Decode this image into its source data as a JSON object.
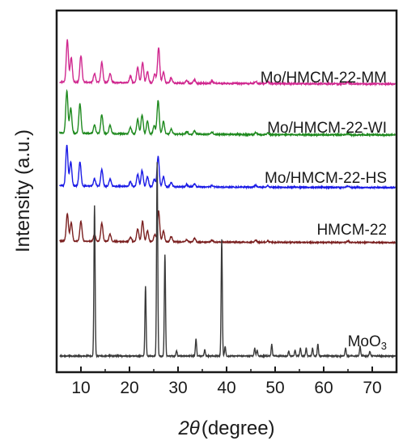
{
  "chart_data": {
    "type": "line",
    "xlabel_symbol": "2θ",
    "xlabel_unit": "(degree)",
    "ylabel": "Intensity (a.u.)",
    "xlim": [
      5,
      75
    ],
    "xticks": [
      10,
      20,
      30,
      40,
      50,
      60,
      70
    ],
    "grid": false,
    "legend": "inline labels at right of each trace",
    "series": [
      {
        "name": "Mo/HMCM-22-MM",
        "color": "#d0288f",
        "offset": 4,
        "baseline": 0.05,
        "peaks": [
          [
            7.2,
            0.95
          ],
          [
            8.0,
            0.55
          ],
          [
            10.0,
            0.6
          ],
          [
            12.8,
            0.2
          ],
          [
            14.3,
            0.45
          ],
          [
            16.0,
            0.2
          ],
          [
            20.2,
            0.15
          ],
          [
            21.7,
            0.35
          ],
          [
            22.7,
            0.45
          ],
          [
            23.7,
            0.25
          ],
          [
            25.2,
            0.2
          ],
          [
            26.0,
            0.8
          ],
          [
            27.0,
            0.25
          ],
          [
            28.6,
            0.12
          ],
          [
            31.8,
            0.06
          ],
          [
            33.4,
            0.08
          ],
          [
            37.0,
            0.05
          ],
          [
            46.0,
            0.05
          ],
          [
            48.5,
            0.04
          ],
          [
            65.0,
            0.04
          ]
        ]
      },
      {
        "name": "Mo/HMCM-22-WI",
        "color": "#1f8a1f",
        "offset": 3,
        "baseline": 0.05,
        "peaks": [
          [
            7.1,
            1.0
          ],
          [
            7.9,
            0.6
          ],
          [
            9.8,
            0.7
          ],
          [
            12.8,
            0.2
          ],
          [
            14.3,
            0.45
          ],
          [
            16.0,
            0.2
          ],
          [
            20.2,
            0.15
          ],
          [
            21.7,
            0.35
          ],
          [
            22.6,
            0.45
          ],
          [
            23.7,
            0.3
          ],
          [
            25.1,
            0.2
          ],
          [
            25.9,
            0.8
          ],
          [
            27.0,
            0.3
          ],
          [
            28.6,
            0.12
          ],
          [
            31.8,
            0.06
          ],
          [
            33.4,
            0.08
          ],
          [
            37.0,
            0.05
          ],
          [
            46.0,
            0.05
          ],
          [
            48.5,
            0.04
          ],
          [
            65.0,
            0.04
          ]
        ]
      },
      {
        "name": "Mo/HMCM-22-HS",
        "color": "#1a1ae6",
        "offset": 2,
        "baseline": 0.05,
        "peaks": [
          [
            7.1,
            1.0
          ],
          [
            7.9,
            0.6
          ],
          [
            9.8,
            0.6
          ],
          [
            12.8,
            0.18
          ],
          [
            14.3,
            0.42
          ],
          [
            16.0,
            0.18
          ],
          [
            20.2,
            0.12
          ],
          [
            21.7,
            0.3
          ],
          [
            22.6,
            0.4
          ],
          [
            23.7,
            0.25
          ],
          [
            25.1,
            0.18
          ],
          [
            25.9,
            0.75
          ],
          [
            27.0,
            0.25
          ],
          [
            28.6,
            0.1
          ],
          [
            31.8,
            0.05
          ],
          [
            33.4,
            0.07
          ],
          [
            37.0,
            0.04
          ],
          [
            46.0,
            0.05
          ],
          [
            48.5,
            0.04
          ],
          [
            65.0,
            0.04
          ]
        ]
      },
      {
        "name": "HMCM-22",
        "color": "#7a1f1f",
        "offset": 1,
        "baseline": 0.05,
        "peaks": [
          [
            7.2,
            0.75
          ],
          [
            8.0,
            0.5
          ],
          [
            10.0,
            0.55
          ],
          [
            12.8,
            0.2
          ],
          [
            14.3,
            0.5
          ],
          [
            16.0,
            0.2
          ],
          [
            20.2,
            0.12
          ],
          [
            21.7,
            0.35
          ],
          [
            22.7,
            0.55
          ],
          [
            23.7,
            0.3
          ],
          [
            25.2,
            0.2
          ],
          [
            26.0,
            0.85
          ],
          [
            27.0,
            0.3
          ],
          [
            28.6,
            0.15
          ],
          [
            31.8,
            0.06
          ],
          [
            33.4,
            0.1
          ],
          [
            37.0,
            0.05
          ],
          [
            46.0,
            0.05
          ],
          [
            48.5,
            0.04
          ],
          [
            65.0,
            0.04
          ]
        ]
      },
      {
        "name": "MoO",
        "name_subscript": "3",
        "color": "#3a3a3a",
        "offset": 0,
        "baseline": 0.02,
        "peaks": [
          [
            12.8,
            1.55
          ],
          [
            23.3,
            0.72
          ],
          [
            25.7,
            2.0
          ],
          [
            27.3,
            1.05
          ],
          [
            29.7,
            0.05
          ],
          [
            33.7,
            0.18
          ],
          [
            35.5,
            0.06
          ],
          [
            39.0,
            1.2
          ],
          [
            39.7,
            0.1
          ],
          [
            45.8,
            0.08
          ],
          [
            46.3,
            0.06
          ],
          [
            49.3,
            0.12
          ],
          [
            52.8,
            0.05
          ],
          [
            54.1,
            0.06
          ],
          [
            55.2,
            0.08
          ],
          [
            56.4,
            0.08
          ],
          [
            57.7,
            0.08
          ],
          [
            58.8,
            0.12
          ],
          [
            64.5,
            0.08
          ],
          [
            67.5,
            0.1
          ],
          [
            69.5,
            0.05
          ]
        ]
      }
    ]
  }
}
